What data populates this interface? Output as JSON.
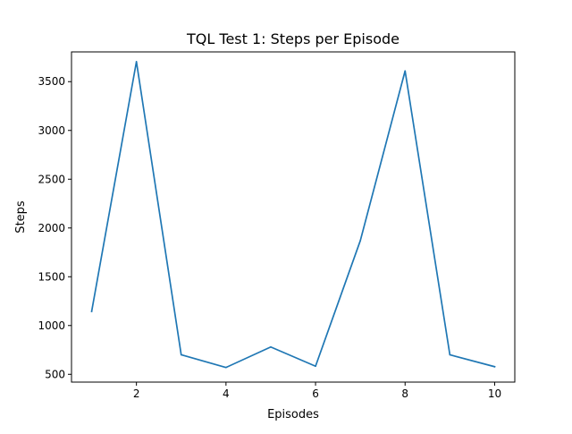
{
  "chart_data": {
    "type": "line",
    "title": "TQL Test 1: Steps per Episode",
    "xlabel": "Episodes",
    "ylabel": "Steps",
    "x": [
      1,
      2,
      3,
      4,
      5,
      6,
      7,
      8,
      9,
      10
    ],
    "series": [
      {
        "values": [
          1145,
          3705,
          700,
          570,
          780,
          583,
          1870,
          3610,
          700,
          578
        ],
        "color": "#1f77b4"
      }
    ],
    "xlim": [
      0.55,
      10.45
    ],
    "ylim": [
      420,
      3805
    ],
    "xticks": [
      2,
      4,
      6,
      8,
      10
    ],
    "yticks": [
      500,
      1000,
      1500,
      2000,
      2500,
      3000,
      3500
    ],
    "grid": false,
    "legend": "none"
  }
}
